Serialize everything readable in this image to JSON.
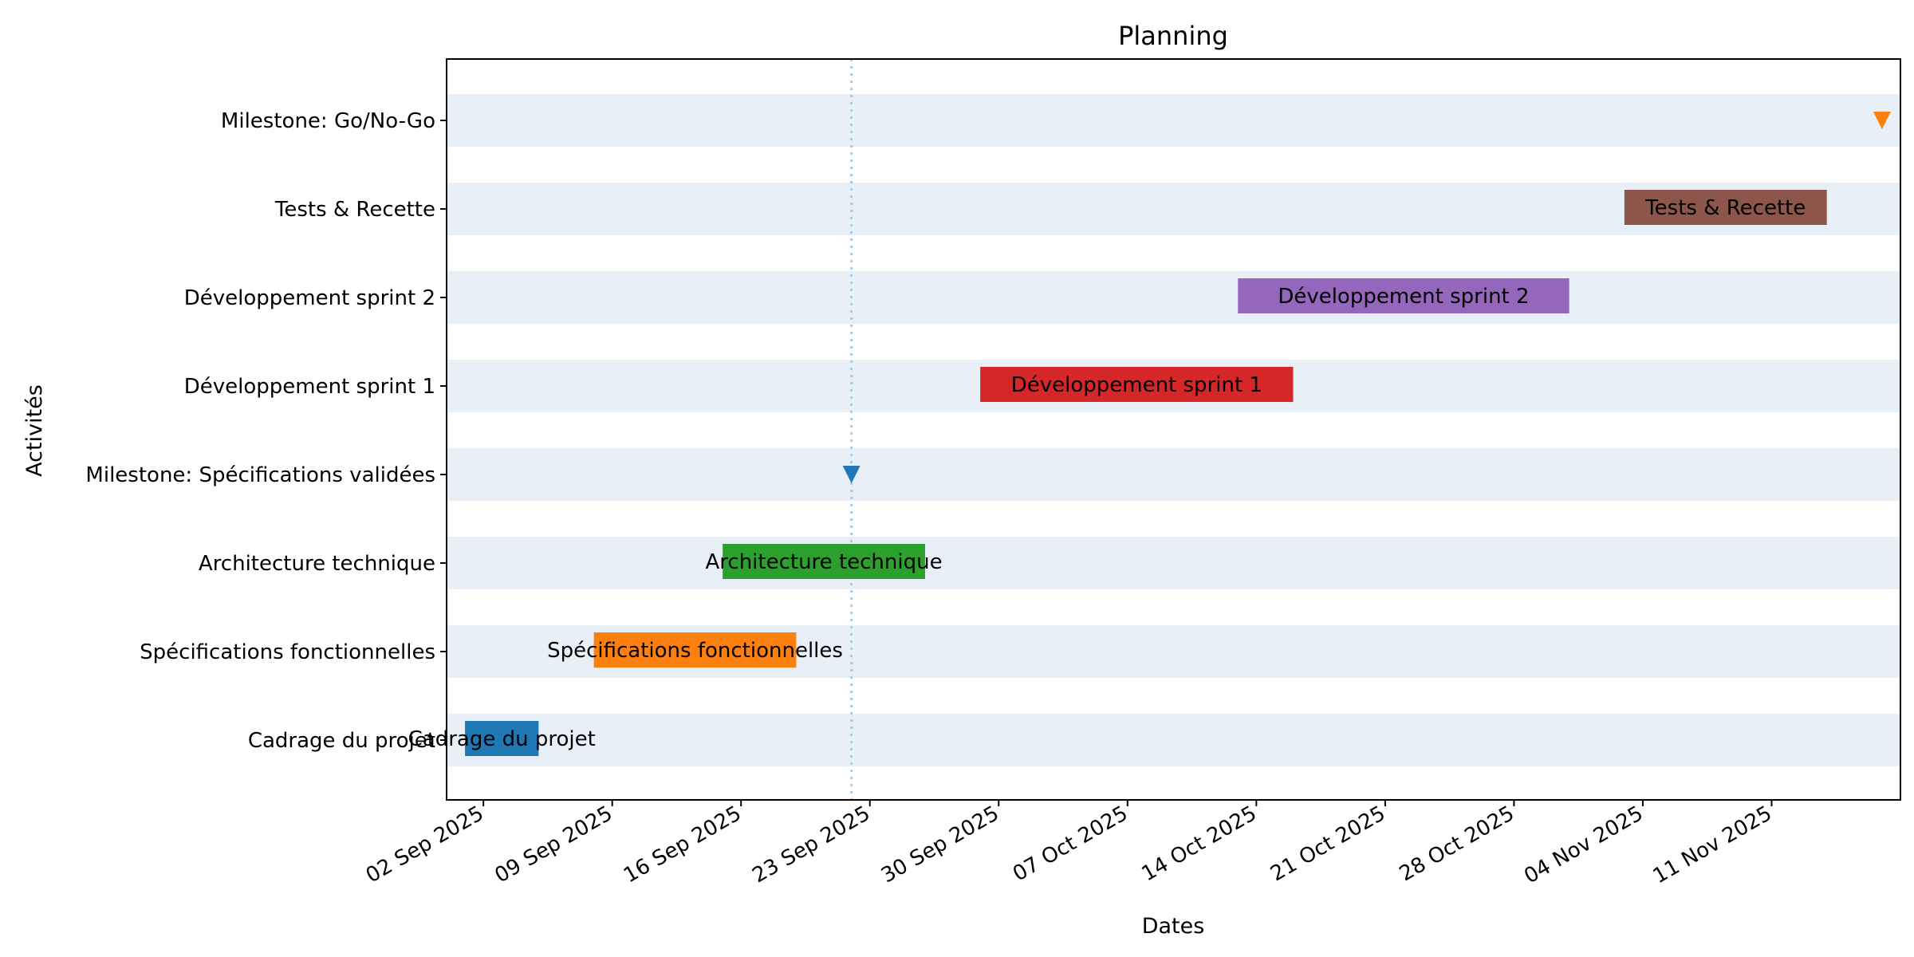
{
  "chart_data": {
    "type": "gantt",
    "title": "Planning",
    "xlabel": "Dates",
    "ylabel": "Activités",
    "xlim": [
      "2025-08-31",
      "2025-11-18"
    ],
    "x_ticks": [
      "02 Sep 2025",
      "09 Sep 2025",
      "16 Sep 2025",
      "23 Sep 2025",
      "30 Sep 2025",
      "07 Oct 2025",
      "14 Oct 2025",
      "21 Oct 2025",
      "28 Oct 2025",
      "04 Nov 2025",
      "11 Nov 2025"
    ],
    "x_tick_dates": [
      "2025-09-02",
      "2025-09-09",
      "2025-09-16",
      "2025-09-23",
      "2025-09-30",
      "2025-10-07",
      "2025-10-14",
      "2025-10-21",
      "2025-10-28",
      "2025-11-04",
      "2025-11-11"
    ],
    "categories": [
      "Cadrage du projet",
      "Spécifications fonctionnelles",
      "Architecture technique",
      "Milestone: Spécifications validées",
      "Développement sprint 1",
      "Développement sprint 2",
      "Tests & Recette",
      "Milestone: Go/No-Go"
    ],
    "tasks": [
      {
        "label": "Cadrage du projet",
        "start": "2025-09-01",
        "end": "2025-09-05",
        "color": "#1f77b4"
      },
      {
        "label": "Spécifications fonctionnelles",
        "start": "2025-09-08",
        "end": "2025-09-19",
        "color": "#ff7f0e"
      },
      {
        "label": "Architecture technique",
        "start": "2025-09-15",
        "end": "2025-09-26",
        "color": "#2ca02c"
      },
      {
        "label": "Développement sprint 1",
        "start": "2025-09-29",
        "end": "2025-10-16",
        "color": "#d62728"
      },
      {
        "label": "Développement sprint 2",
        "start": "2025-10-13",
        "end": "2025-10-31",
        "color": "#9467bd"
      },
      {
        "label": "Tests & Recette",
        "start": "2025-11-03",
        "end": "2025-11-14",
        "color": "#8c564b"
      }
    ],
    "milestones": [
      {
        "label": "Milestone: Spécifications validées",
        "date": "2025-09-22",
        "color": "#1f77b4"
      },
      {
        "label": "Milestone: Go/No-Go",
        "date": "2025-11-17",
        "color": "#ff7f0e"
      }
    ],
    "today_line": "2025-09-22",
    "today_line_color": "#a6cbe8",
    "row_band_color": "#e8eff7"
  }
}
